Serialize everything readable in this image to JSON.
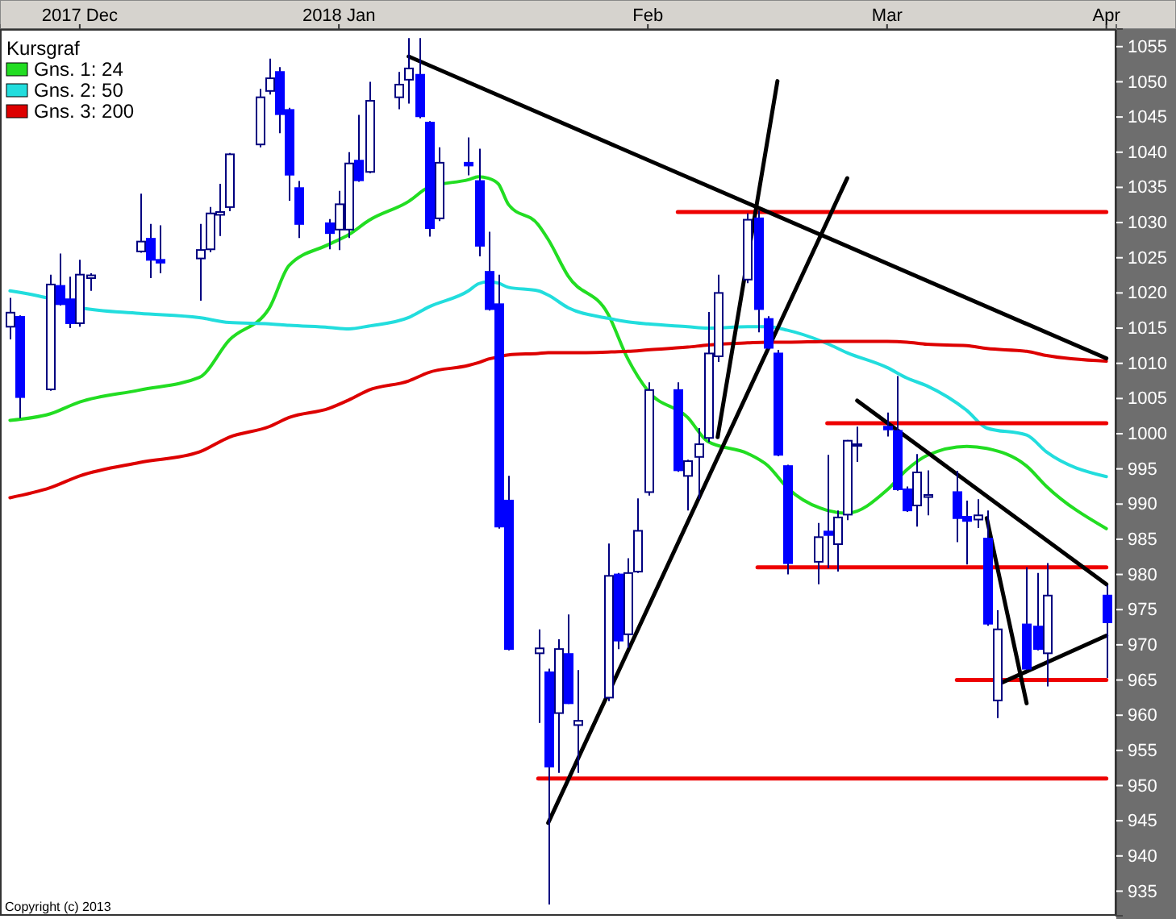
{
  "chart_data": {
    "type": "candlestick",
    "colors": [
      "#ffffff",
      "#0000ff",
      "#ffffff",
      "#0000ff",
      "#0000ff",
      "#ffffff",
      "#ffffff",
      "#ffffff",
      "#0000ff",
      "#0000ff",
      "#ffffff",
      "#ffffff",
      "#ffffff",
      "#ffffff",
      "#ffffff",
      "#ffffff",
      "#0000ff",
      "#0000ff",
      "#0000ff",
      "#0000ff",
      "#ffffff",
      "#ffffff",
      "#0000ff",
      "#ffffff",
      "#ffffff",
      "#ffffff",
      "#0000ff",
      "#0000ff",
      "#ffffff",
      "#0000ff",
      "#0000ff",
      "#0000ff",
      "#0000ff",
      "#0000ff",
      "#ffffff",
      "#0000ff",
      "#ffffff",
      "#0000ff",
      "#ffffff",
      "#ffffff",
      "#0000ff",
      "#ffffff",
      "#ffffff",
      "#ffffff",
      "#0000ff",
      "#ffffff",
      "#ffffff",
      "#ffffff",
      "#ffffff",
      "#ffffff",
      "#0000ff",
      "#0000ff",
      "#0000ff",
      "#0000ff",
      "#ffffff",
      "#0000ff",
      "#ffffff",
      "#ffffff",
      "#ffffff",
      "#0000ff",
      "#0000ff",
      "#0000ff",
      "#ffffff",
      "#ffffff",
      "#0000ff",
      "#0000ff",
      "#ffffff",
      "#0000ff",
      "#ffffff",
      "#0000ff",
      "#0000ff",
      "#ffffff",
      "#0000ff"
    ],
    "legend": "top left",
    "legend_title": "Kursgraf",
    "grid": false,
    "annotations": [
      "Copyright (c) 2013"
    ],
    "xlim": [
      "2017-12-13",
      "2018-04-04"
    ],
    "ylim": [
      931.5,
      1057.5
    ],
    "yticks": [
      935,
      940,
      945,
      950,
      955,
      960,
      965,
      970,
      975,
      980,
      985,
      990,
      995,
      1000,
      1005,
      1010,
      1015,
      1020,
      1025,
      1030,
      1035,
      1040,
      1045,
      1050,
      1055
    ],
    "xticks": [
      {
        "value": "2017-12-21",
        "label": "2017 Dec"
      },
      {
        "value": "2018-01-16",
        "label": "2018 Jan"
      },
      {
        "value": "2018-02-16",
        "label": "Feb"
      },
      {
        "value": "2018-03-12",
        "label": "Mar"
      },
      {
        "value": "2018-04-03",
        "label": "Apr"
      }
    ],
    "x": [
      "2017-12-14",
      "2017-12-15",
      "2017-12-18",
      "2017-12-19",
      "2017-12-20",
      "2017-12-21",
      "2017-12-22",
      "2017-12-27",
      "2017-12-28",
      "2017-12-29",
      "2018-01-02",
      "2018-01-03",
      "2018-01-04",
      "2018-01-05",
      "2018-01-08",
      "2018-01-09",
      "2018-01-10",
      "2018-01-11",
      "2018-01-12",
      "2018-01-15",
      "2018-01-16",
      "2018-01-17",
      "2018-01-18",
      "2018-01-19",
      "2018-01-22",
      "2018-01-23",
      "2018-01-24",
      "2018-01-25",
      "2018-01-26",
      "2018-01-29",
      "2018-01-30",
      "2018-01-31",
      "2018-02-01",
      "2018-02-02",
      "2018-02-05",
      "2018-02-06",
      "2018-02-07",
      "2018-02-08",
      "2018-02-09",
      "2018-02-12",
      "2018-02-13",
      "2018-02-14",
      "2018-02-15",
      "2018-02-16",
      "2018-02-19",
      "2018-02-20",
      "2018-02-21",
      "2018-02-22",
      "2018-02-23",
      "2018-02-26",
      "2018-02-27",
      "2018-02-28",
      "2018-03-01",
      "2018-03-02",
      "2018-03-05",
      "2018-03-06",
      "2018-03-07",
      "2018-03-08",
      "2018-03-09",
      "2018-03-12",
      "2018-03-13",
      "2018-03-14",
      "2018-03-15",
      "2018-03-16",
      "2018-03-19",
      "2018-03-20",
      "2018-03-21",
      "2018-03-22",
      "2018-03-23",
      "2018-03-26",
      "2018-03-27",
      "2018-03-28",
      "2018-04-03"
    ],
    "ohlc": [
      [
        1015.2,
        1019.3,
        1013.4,
        1017.2
      ],
      [
        1016.6,
        1016.8,
        1002.2,
        1005.2
      ],
      [
        1006.3,
        1022.6,
        1006.1,
        1021.2
      ],
      [
        1021.0,
        1025.6,
        1018.2,
        1018.4
      ],
      [
        1019.1,
        1022.3,
        1015.0,
        1015.7
      ],
      [
        1015.7,
        1024.7,
        1015.2,
        1022.6
      ],
      [
        1022.1,
        1022.8,
        1020.3,
        1022.5
      ],
      [
        1025.9,
        1034.1,
        1025.7,
        1027.3
      ],
      [
        1027.7,
        1029.8,
        1022.1,
        1024.7
      ],
      [
        1024.7,
        1029.6,
        1022.8,
        1024.3
      ],
      [
        1024.9,
        1029.8,
        1018.9,
        1026.1
      ],
      [
        1026.2,
        1032.2,
        1025.8,
        1031.3
      ],
      [
        1031.1,
        1035.5,
        1028.1,
        1031.5
      ],
      [
        1032.2,
        1039.9,
        1031.6,
        1039.7
      ],
      [
        1041.1,
        1049.0,
        1040.7,
        1047.8
      ],
      [
        1048.7,
        1053.3,
        1048.2,
        1050.5
      ],
      [
        1051.4,
        1052.1,
        1042.7,
        1045.4
      ],
      [
        1046.0,
        1046.3,
        1033.1,
        1036.8
      ],
      [
        1034.9,
        1035.9,
        1027.8,
        1029.8
      ],
      [
        1029.9,
        1030.5,
        1026.2,
        1028.5
      ],
      [
        1029.0,
        1034.5,
        1026.1,
        1032.6
      ],
      [
        1029.0,
        1040.0,
        1027.8,
        1038.4
      ],
      [
        1038.8,
        1045.3,
        1035.8,
        1036.0
      ],
      [
        1037.2,
        1050.0,
        1037.0,
        1047.3
      ],
      [
        1047.8,
        1051.4,
        1046.1,
        1049.6
      ],
      [
        1050.3,
        1056.2,
        1046.9,
        1051.9
      ],
      [
        1051.0,
        1056.2,
        1044.8,
        1045.1
      ],
      [
        1044.2,
        1044.4,
        1028.0,
        1029.2
      ],
      [
        1030.6,
        1040.7,
        1030.2,
        1038.5
      ],
      [
        1038.5,
        1042.1,
        1036.7,
        1038.1
      ],
      [
        1035.9,
        1040.5,
        1025.2,
        1026.7
      ],
      [
        1023.0,
        1028.7,
        1017.5,
        1017.7
      ],
      [
        1018.4,
        1022.6,
        986.5,
        986.8
      ],
      [
        990.5,
        994.0,
        969.2,
        969.4
      ],
      [
        968.8,
        972.2,
        958.9,
        969.5
      ],
      [
        966.1,
        966.6,
        933.1,
        952.7
      ],
      [
        960.3,
        970.8,
        951.8,
        969.4
      ],
      [
        968.7,
        974.3,
        961.6,
        961.7
      ],
      [
        958.6,
        966.4,
        951.8,
        959.2
      ],
      [
        962.5,
        984.4,
        962.0,
        979.8
      ],
      [
        980.0,
        980.2,
        969.4,
        970.6
      ],
      [
        971.5,
        982.3,
        969.6,
        980.2
      ],
      [
        980.4,
        990.8,
        980.2,
        986.2
      ],
      [
        991.7,
        1007.3,
        991.2,
        1006.2
      ],
      [
        1006.2,
        1007.3,
        994.6,
        994.8
      ],
      [
        994.0,
        996.3,
        989.1,
        996.1
      ],
      [
        996.7,
        1000.8,
        990.7,
        998.5
      ],
      [
        999.4,
        1017.3,
        998.8,
        1011.4
      ],
      [
        1011.0,
        1022.6,
        1010.2,
        1020.0
      ],
      [
        1021.9,
        1031.3,
        1021.4,
        1030.4
      ],
      [
        1030.6,
        1031.7,
        1014.4,
        1017.7
      ],
      [
        1016.3,
        1016.7,
        1012.0,
        1012.2
      ],
      [
        1011.4,
        1011.9,
        996.8,
        997.0
      ],
      [
        995.4,
        995.6,
        980.0,
        981.6
      ],
      [
        981.8,
        987.3,
        978.6,
        985.3
      ],
      [
        986.1,
        997.0,
        980.9,
        985.6
      ],
      [
        984.3,
        989.1,
        980.4,
        988.1
      ],
      [
        988.5,
        999.1,
        987.7,
        999.0
      ],
      [
        998.3,
        1001.0,
        996.0,
        998.5
      ],
      [
        1001.0,
        1003.0,
        999.6,
        1000.6
      ],
      [
        1000.4,
        1008.2,
        991.9,
        992.1
      ],
      [
        992.1,
        992.5,
        988.9,
        989.1
      ],
      [
        989.8,
        997.1,
        986.8,
        994.5
      ],
      [
        991.0,
        994.8,
        988.4,
        991.3
      ],
      [
        991.7,
        994.7,
        984.6,
        988.0
      ],
      [
        988.2,
        990.5,
        981.4,
        987.6
      ],
      [
        987.8,
        990.7,
        986.6,
        988.4
      ],
      [
        985.1,
        989.1,
        972.7,
        973.0
      ],
      [
        962.1,
        974.9,
        959.6,
        972.2
      ],
      [
        972.9,
        981.0,
        966.4,
        966.6
      ],
      [
        972.6,
        980.2,
        969.2,
        969.4
      ],
      [
        968.8,
        981.6,
        964.1,
        977.0
      ],
      [
        977.0,
        978.5,
        965.3,
        973.2
      ]
    ],
    "series": [
      {
        "name": "Gns. 1: 24",
        "color": "#22dd22",
        "type": "line",
        "x": [
          "2017-12-14",
          "2017-12-18",
          "2017-12-21",
          "2017-12-27",
          "2018-01-02",
          "2018-01-05",
          "2018-01-09",
          "2018-01-11",
          "2018-01-15",
          "2018-01-17",
          "2018-01-19",
          "2018-01-23",
          "2018-01-25",
          "2018-01-29",
          "2018-01-30",
          "2018-01-31",
          "2018-02-01",
          "2018-02-02",
          "2018-02-05",
          "2018-02-06",
          "2018-02-08",
          "2018-02-12",
          "2018-02-14",
          "2018-02-16",
          "2018-02-20",
          "2018-02-22",
          "2018-02-26",
          "2018-02-28",
          "2018-03-02",
          "2018-03-06",
          "2018-03-08",
          "2018-03-12",
          "2018-03-14",
          "2018-03-16",
          "2018-03-20",
          "2018-03-22",
          "2018-03-26",
          "2018-03-28",
          "2018-04-03"
        ],
        "values": [
          1001.9,
          1002.8,
          1004.5,
          1006.2,
          1008.0,
          1013.3,
          1017.8,
          1023.9,
          1026.9,
          1028.3,
          1030.3,
          1033.0,
          1035.0,
          1036.1,
          1036.5,
          1036.3,
          1035.5,
          1032.6,
          1029.7,
          1027.6,
          1022.4,
          1017.0,
          1010.6,
          1006.1,
          1002.3,
          998.9,
          997.2,
          995.5,
          992.3,
          989.1,
          988.7,
          992.0,
          994.9,
          996.9,
          998.2,
          997.9,
          995.4,
          992.5,
          986.5
        ]
      },
      {
        "name": "Gns. 2: 50",
        "color": "#22dddd",
        "type": "line",
        "x": [
          "2017-12-14",
          "2017-12-18",
          "2017-12-21",
          "2017-12-27",
          "2018-01-02",
          "2018-01-05",
          "2018-01-09",
          "2018-01-11",
          "2018-01-15",
          "2018-01-17",
          "2018-01-19",
          "2018-01-23",
          "2018-01-25",
          "2018-01-29",
          "2018-01-30",
          "2018-01-31",
          "2018-02-01",
          "2018-02-02",
          "2018-02-05",
          "2018-02-06",
          "2018-02-08",
          "2018-02-12",
          "2018-02-14",
          "2018-02-16",
          "2018-02-20",
          "2018-02-22",
          "2018-02-26",
          "2018-02-28",
          "2018-03-02",
          "2018-03-06",
          "2018-03-08",
          "2018-03-12",
          "2018-03-14",
          "2018-03-16",
          "2018-03-20",
          "2018-03-22",
          "2018-03-26",
          "2018-03-28",
          "2018-04-03"
        ],
        "values": [
          1020.3,
          1019.2,
          1017.9,
          1017.1,
          1016.5,
          1015.8,
          1015.6,
          1015.4,
          1015.1,
          1014.9,
          1015.3,
          1016.5,
          1018.0,
          1020.3,
          1021.3,
          1021.6,
          1021.4,
          1020.8,
          1020.3,
          1019.7,
          1017.9,
          1016.4,
          1015.9,
          1015.6,
          1015.2,
          1015.0,
          1015.2,
          1015.2,
          1014.7,
          1012.8,
          1011.5,
          1009.4,
          1007.9,
          1006.8,
          1003.3,
          1000.8,
          999.8,
          997.4,
          993.9
        ]
      },
      {
        "name": "Gns. 3: 200",
        "color": "#dd0000",
        "type": "line",
        "x": [
          "2017-12-14",
          "2017-12-18",
          "2017-12-21",
          "2017-12-27",
          "2018-01-02",
          "2018-01-05",
          "2018-01-09",
          "2018-01-11",
          "2018-01-15",
          "2018-01-17",
          "2018-01-19",
          "2018-01-23",
          "2018-01-25",
          "2018-01-29",
          "2018-01-30",
          "2018-01-31",
          "2018-02-01",
          "2018-02-02",
          "2018-02-05",
          "2018-02-06",
          "2018-02-08",
          "2018-02-12",
          "2018-02-14",
          "2018-02-16",
          "2018-02-20",
          "2018-02-22",
          "2018-02-26",
          "2018-02-28",
          "2018-03-02",
          "2018-03-06",
          "2018-03-08",
          "2018-03-12",
          "2018-03-14",
          "2018-03-16",
          "2018-03-20",
          "2018-03-22",
          "2018-03-26",
          "2018-03-28",
          "2018-04-03"
        ],
        "values": [
          990.9,
          992.3,
          994.0,
          995.9,
          997.4,
          999.5,
          1001.0,
          1002.3,
          1003.6,
          1004.8,
          1006.2,
          1007.5,
          1008.7,
          1009.7,
          1010.1,
          1010.6,
          1010.9,
          1011.2,
          1011.4,
          1011.5,
          1011.5,
          1011.6,
          1011.7,
          1011.9,
          1012.3,
          1012.6,
          1012.9,
          1013.0,
          1013.0,
          1013.1,
          1013.1,
          1013.1,
          1013.0,
          1012.7,
          1012.5,
          1012.1,
          1011.7,
          1011.1,
          1010.3
        ]
      },
      {
        "color": "#ee0000",
        "type": "line",
        "x": [
          "2018-02-19",
          "2018-04-03"
        ],
        "values": [
          1031.5,
          1031.5
        ]
      },
      {
        "color": "#ee0000",
        "type": "line",
        "x": [
          "2018-03-06",
          "2018-04-03"
        ],
        "values": [
          1001.5,
          1001.5
        ]
      },
      {
        "color": "#ee0000",
        "type": "line",
        "x": [
          "2018-02-27",
          "2018-04-03"
        ],
        "values": [
          981,
          981
        ]
      },
      {
        "color": "#ee0000",
        "type": "line",
        "x": [
          "2018-03-19",
          "2018-04-03"
        ],
        "values": [
          965,
          965
        ]
      },
      {
        "color": "#ee0000",
        "type": "line",
        "x": [
          "2018-02-05",
          "2018-04-03"
        ],
        "values": [
          951,
          951
        ]
      },
      {
        "color": "#000000",
        "type": "line",
        "x": [
          "2018-01-23",
          "2018-04-03"
        ],
        "values": [
          1053.6,
          1010.7
        ]
      },
      {
        "color": "#000000",
        "type": "line",
        "x": [
          "2018-02-06",
          "2018-03-08"
        ],
        "values": [
          944.7,
          1036.3
        ]
      },
      {
        "color": "#000000",
        "type": "line",
        "x": [
          "2018-02-23",
          "2018-03-01"
        ],
        "values": [
          999.5,
          1050.1
        ]
      },
      {
        "color": "#000000",
        "type": "line",
        "x": [
          "2018-03-09",
          "2018-04-03"
        ],
        "values": [
          1004.7,
          978.6
        ]
      },
      {
        "color": "#000000",
        "type": "line",
        "x": [
          "2018-03-22",
          "2018-03-26"
        ],
        "values": [
          988.0,
          961.7
        ]
      },
      {
        "color": "#000000",
        "type": "line",
        "x": [
          "2018-03-23",
          "2018-04-03"
        ],
        "values": [
          964.3,
          971.3
        ]
      }
    ]
  }
}
